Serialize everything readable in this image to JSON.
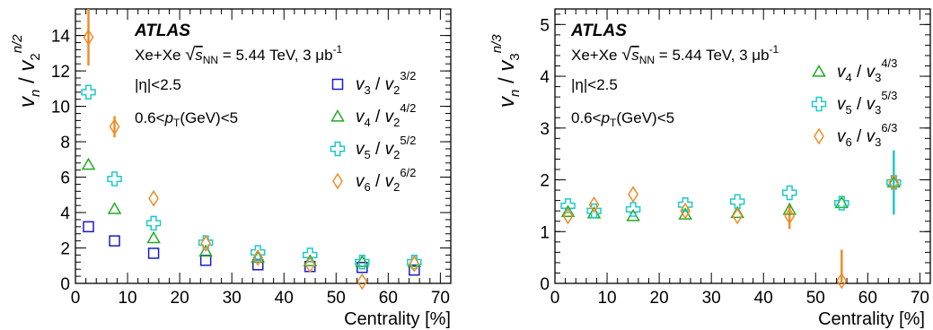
{
  "chart_data": [
    {
      "type": "scatter",
      "xlabel": "Centrality [%]",
      "ylabel": "vn / v2^(n/2)",
      "xlim": [
        0,
        72
      ],
      "ylim": [
        0,
        15.5
      ],
      "xticks": [
        0,
        10,
        20,
        30,
        40,
        50,
        60,
        70
      ],
      "yticks": [
        0,
        2,
        4,
        6,
        8,
        10,
        12,
        14
      ],
      "grid": false,
      "legend_position": "right",
      "annotations": {
        "experiment": "ATLAS",
        "system": "Xe+Xe √sNN = 5.44 TeV, 3 μb-1",
        "eta_cut": "|η|<2.5",
        "pt_cut": "0.6<pT(GeV)<5"
      },
      "series": [
        {
          "name": "v3 / v2^(3/2)",
          "marker": "square",
          "color": "#1a1acc",
          "points": [
            {
              "x": 2.5,
              "y": 3.2
            },
            {
              "x": 7.5,
              "y": 2.4
            },
            {
              "x": 15,
              "y": 1.7
            },
            {
              "x": 25,
              "y": 1.3
            },
            {
              "x": 35,
              "y": 1.05
            },
            {
              "x": 45,
              "y": 0.95
            },
            {
              "x": 55,
              "y": 0.9
            },
            {
              "x": 65,
              "y": 0.75
            }
          ]
        },
        {
          "name": "v4 / v2^(4/2)",
          "marker": "triangle",
          "color": "#22aa22",
          "points": [
            {
              "x": 2.5,
              "y": 6.7
            },
            {
              "x": 7.5,
              "y": 4.2
            },
            {
              "x": 15,
              "y": 2.55
            },
            {
              "x": 25,
              "y": 1.8
            },
            {
              "x": 35,
              "y": 1.45
            },
            {
              "x": 45,
              "y": 1.25
            },
            {
              "x": 55,
              "y": 1.2
            },
            {
              "x": 65,
              "y": 1.2
            }
          ]
        },
        {
          "name": "v5 / v2^(5/2)",
          "marker": "cross",
          "color": "#1fc8c8",
          "points": [
            {
              "x": 2.5,
              "y": 10.8
            },
            {
              "x": 7.5,
              "y": 5.9
            },
            {
              "x": 15,
              "y": 3.4
            },
            {
              "x": 25,
              "y": 2.3
            },
            {
              "x": 35,
              "y": 1.75
            },
            {
              "x": 45,
              "y": 1.6
            },
            {
              "x": 55,
              "y": 1.2
            },
            {
              "x": 65,
              "y": 1.2
            }
          ]
        },
        {
          "name": "v6 / v2^(6/2)",
          "marker": "diamond",
          "color": "#f08c28",
          "points": [
            {
              "x": 2.5,
              "y": 13.9,
              "err": 1.6
            },
            {
              "x": 7.5,
              "y": 8.85,
              "err": 0.6
            },
            {
              "x": 15,
              "y": 4.8
            },
            {
              "x": 25,
              "y": 2.25
            },
            {
              "x": 35,
              "y": 1.45
            },
            {
              "x": 45,
              "y": 1.05
            },
            {
              "x": 55,
              "y": 0.1
            },
            {
              "x": 65,
              "y": 1.1
            }
          ]
        }
      ]
    },
    {
      "type": "scatter",
      "xlabel": "Centrality [%]",
      "ylabel": "vn / v3^(n/3)",
      "xlim": [
        0,
        72
      ],
      "ylim": [
        0,
        5.3
      ],
      "xticks": [
        0,
        10,
        20,
        30,
        40,
        50,
        60,
        70
      ],
      "yticks": [
        0,
        1,
        2,
        3,
        4,
        5
      ],
      "grid": false,
      "legend_position": "right",
      "annotations": {
        "experiment": "ATLAS",
        "system": "Xe+Xe √sNN = 5.44 TeV, 3 μb-1",
        "eta_cut": "|η|<2.5",
        "pt_cut": "0.6<pT(GeV)<5"
      },
      "series": [
        {
          "name": "v4 / v3^(4/3)",
          "marker": "triangle",
          "color": "#22aa22",
          "points": [
            {
              "x": 2.5,
              "y": 1.38
            },
            {
              "x": 7.5,
              "y": 1.35
            },
            {
              "x": 15,
              "y": 1.3
            },
            {
              "x": 25,
              "y": 1.33
            },
            {
              "x": 35,
              "y": 1.36
            },
            {
              "x": 45,
              "y": 1.42
            },
            {
              "x": 55,
              "y": 1.55
            },
            {
              "x": 65,
              "y": 1.95
            }
          ]
        },
        {
          "name": "v5 / v3^(5/3)",
          "marker": "cross",
          "color": "#1fc8c8",
          "points": [
            {
              "x": 2.5,
              "y": 1.5
            },
            {
              "x": 7.5,
              "y": 1.4
            },
            {
              "x": 15,
              "y": 1.43
            },
            {
              "x": 25,
              "y": 1.52
            },
            {
              "x": 35,
              "y": 1.58
            },
            {
              "x": 45,
              "y": 1.75
            },
            {
              "x": 55,
              "y": 1.55
            },
            {
              "x": 65,
              "y": 1.95,
              "err": 0.62
            }
          ]
        },
        {
          "name": "v6 / v3^(6/3)",
          "marker": "diamond",
          "color": "#f08c28",
          "points": [
            {
              "x": 2.5,
              "y": 1.3
            },
            {
              "x": 7.5,
              "y": 1.52
            },
            {
              "x": 15,
              "y": 1.72
            },
            {
              "x": 25,
              "y": 1.4
            },
            {
              "x": 35,
              "y": 1.3
            },
            {
              "x": 45,
              "y": 1.3,
              "err": 0.25
            },
            {
              "x": 55,
              "y": 0.05,
              "err": 0.6
            },
            {
              "x": 65,
              "y": 1.95
            }
          ]
        }
      ]
    }
  ]
}
